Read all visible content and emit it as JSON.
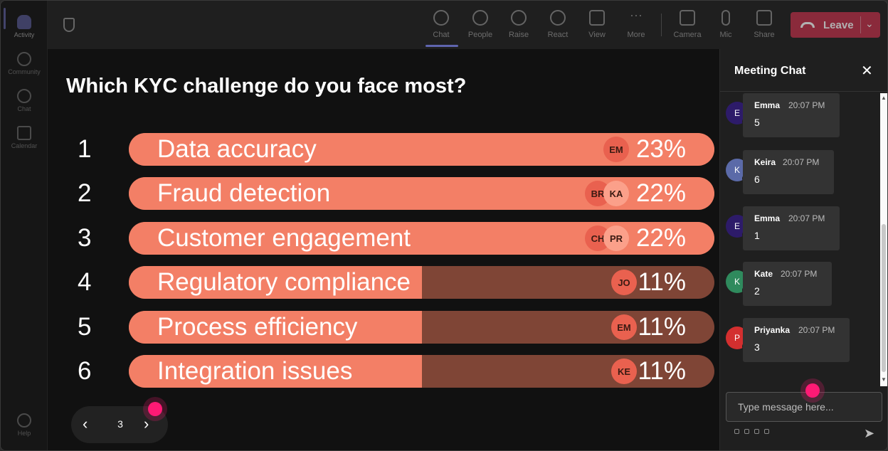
{
  "rail": {
    "top_items": [
      {
        "label": "Activity",
        "icon": "bell-icon"
      },
      {
        "label": "Community",
        "icon": "community-icon"
      },
      {
        "label": "Chat",
        "icon": "chat-icon"
      },
      {
        "label": "Calendar",
        "icon": "calendar-icon"
      }
    ],
    "help_label": "Help"
  },
  "toolbar": {
    "buttons": [
      {
        "label": "Chat",
        "icon": "chat-icon"
      },
      {
        "label": "People",
        "icon": "people-icon"
      },
      {
        "label": "Raise",
        "icon": "raise-hand-icon"
      },
      {
        "label": "React",
        "icon": "smiley-icon"
      },
      {
        "label": "View",
        "icon": "grid-icon"
      },
      {
        "label": "More",
        "icon": "more-icon"
      },
      {
        "label": "Camera",
        "icon": "camera-off-icon"
      },
      {
        "label": "Mic",
        "icon": "mic-icon"
      },
      {
        "label": "Share",
        "icon": "share-icon"
      }
    ],
    "leave_label": "Leave",
    "leave_chevron": "⌄",
    "colors": {
      "leave": "#c4314b",
      "accent": "#7b83eb"
    }
  },
  "poll": {
    "question": "Which KYC challenge do you face most?",
    "options": [
      {
        "num": "1",
        "label": "Data accuracy",
        "percent": "23%",
        "fill": 1.0,
        "avatars": [
          {
            "initials": "EM",
            "color": "#e9614f"
          }
        ]
      },
      {
        "num": "2",
        "label": "Fraud detection",
        "percent": "22%",
        "fill": 1.0,
        "avatars": [
          {
            "initials": "BR",
            "color": "#e9614f"
          },
          {
            "initials": "KA",
            "color": "#fba08a"
          }
        ]
      },
      {
        "num": "3",
        "label": "Customer engagement",
        "percent": "22%",
        "fill": 1.0,
        "avatars": [
          {
            "initials": "CH",
            "color": "#e9614f"
          },
          {
            "initials": "PR",
            "color": "#fba08a"
          }
        ]
      },
      {
        "num": "4",
        "label": "Regulatory compliance",
        "percent": "11%",
        "fill": 0.5,
        "avatars": [
          {
            "initials": "JO",
            "color": "#e9614f"
          }
        ]
      },
      {
        "num": "5",
        "label": "Process efficiency",
        "percent": "11%",
        "fill": 0.5,
        "avatars": [
          {
            "initials": "EM",
            "color": "#e9614f"
          }
        ]
      },
      {
        "num": "6",
        "label": "Integration issues",
        "percent": "11%",
        "fill": 0.5,
        "avatars": [
          {
            "initials": "KE",
            "color": "#e9614f"
          }
        ]
      }
    ],
    "colors": {
      "fill": "#f37f66",
      "track": "#7f4536"
    },
    "pager": {
      "prev": "‹",
      "page": "3",
      "next": "›"
    }
  },
  "chat": {
    "title": "Meeting Chat",
    "close": "✕",
    "messages": [
      {
        "initial": "E",
        "name": "Emma",
        "time": "20:07 PM",
        "text": "5",
        "avatar_color": "#2d1b69"
      },
      {
        "initial": "K",
        "name": "Keira",
        "time": "20:07 PM",
        "text": "6",
        "avatar_color": "#5b6aa8"
      },
      {
        "initial": "E",
        "name": "Emma",
        "time": "20:07 PM",
        "text": "1",
        "avatar_color": "#2d1b69"
      },
      {
        "initial": "K",
        "name": "Kate",
        "time": "20:07 PM",
        "text": "2",
        "avatar_color": "#2f8a5d"
      },
      {
        "initial": "P",
        "name": "Priyanka",
        "time": "20:07 PM",
        "text": "3",
        "avatar_color": "#d32f2f"
      }
    ],
    "input_placeholder": "Type message here...",
    "send_icon": "➤"
  }
}
